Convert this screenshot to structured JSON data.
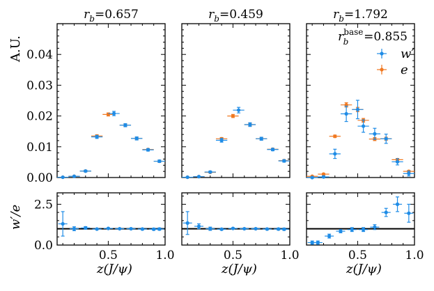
{
  "chart_data": {
    "type": "scatter",
    "ylabel_top": "A.U.",
    "ylabel_bottom": "w′/e",
    "xlabel": "z(J/ψ)",
    "base_label": "r_b^base = 0.855",
    "base_text": {
      "r": "r",
      "sub": "b",
      "sup": "base",
      "value": "=0.855"
    },
    "legend": [
      {
        "name": "w′",
        "color": "#1f8ce6"
      },
      {
        "name": "e",
        "color": "#f07820"
      }
    ],
    "top_ylim": [
      0,
      0.05
    ],
    "top_yticks": [
      0.0,
      0.01,
      0.02,
      0.03,
      0.04
    ],
    "top_ytick_labels": [
      "0.00",
      "0.01",
      "0.02",
      "0.03",
      "0.04"
    ],
    "bottom_ylim": [
      0,
      3.2
    ],
    "bottom_yticks": [
      0.0,
      2.5
    ],
    "bottom_ytick_labels": [
      "0.0",
      "2.5"
    ],
    "xlim": [
      0.05,
      1.0
    ],
    "xticks": [
      0.5,
      1.0
    ],
    "xtick_labels": [
      "0.5",
      "1.0"
    ],
    "ratio_reference": 1.0,
    "panels": [
      {
        "title": {
          "r": "r",
          "sub": "b",
          "value": "=0.657"
        },
        "w_prime": {
          "x": [
            0.1,
            0.2,
            0.3,
            0.4,
            0.55,
            0.65,
            0.75,
            0.85,
            0.95
          ],
          "y": [
            0.0001,
            0.0004,
            0.0021,
            0.0132,
            0.0208,
            0.017,
            0.0127,
            0.009,
            0.0053
          ],
          "yerr": [
            0.0001,
            0.0001,
            0.0003,
            0.0005,
            0.0007,
            0.0005,
            0.0005,
            0.0004,
            0.0004
          ]
        },
        "e": {
          "x": [
            0.1,
            0.2,
            0.3,
            0.4,
            0.5,
            0.65,
            0.75,
            0.85,
            0.95
          ],
          "y": [
            0.0001,
            0.0004,
            0.0021,
            0.0135,
            0.0205,
            0.017,
            0.0127,
            0.0091,
            0.0053
          ],
          "yerr": [
            0.0001,
            0.0001,
            0.0002,
            0.0004,
            0.0005,
            0.0004,
            0.0004,
            0.0003,
            0.0003
          ]
        },
        "ratio": {
          "x": [
            0.1,
            0.2,
            0.3,
            0.4,
            0.5,
            0.6,
            0.7,
            0.8,
            0.9,
            0.95
          ],
          "y": [
            1.3,
            1.0,
            1.05,
            0.98,
            1.02,
            1.0,
            1.0,
            0.98,
            0.97,
            0.98
          ],
          "yerr": [
            0.75,
            0.12,
            0.08,
            0.04,
            0.03,
            0.03,
            0.04,
            0.05,
            0.06,
            0.07
          ]
        }
      },
      {
        "title": {
          "r": "r",
          "sub": "b",
          "value": "=0.459"
        },
        "w_prime": {
          "x": [
            0.1,
            0.2,
            0.3,
            0.4,
            0.55,
            0.65,
            0.75,
            0.85,
            0.95
          ],
          "y": [
            0.0001,
            0.0003,
            0.0018,
            0.0121,
            0.0219,
            0.0172,
            0.0126,
            0.0091,
            0.0054
          ],
          "yerr": [
            0.0001,
            0.0001,
            0.0003,
            0.0006,
            0.0009,
            0.0006,
            0.0005,
            0.0004,
            0.0004
          ]
        },
        "e": {
          "x": [
            0.1,
            0.2,
            0.3,
            0.4,
            0.5,
            0.65,
            0.75,
            0.85,
            0.95
          ],
          "y": [
            0.0001,
            0.0003,
            0.0017,
            0.0126,
            0.02,
            0.0172,
            0.0126,
            0.0092,
            0.0055
          ],
          "yerr": [
            0.0001,
            0.0001,
            0.0002,
            0.0004,
            0.0005,
            0.0004,
            0.0004,
            0.0003,
            0.0003
          ]
        },
        "ratio": {
          "x": [
            0.1,
            0.2,
            0.3,
            0.4,
            0.5,
            0.6,
            0.7,
            0.8,
            0.9,
            0.95
          ],
          "y": [
            1.35,
            1.15,
            1.0,
            0.97,
            1.02,
            1.0,
            1.0,
            0.98,
            0.98,
            0.97
          ],
          "yerr": [
            0.7,
            0.15,
            0.1,
            0.05,
            0.04,
            0.04,
            0.04,
            0.05,
            0.06,
            0.07
          ]
        }
      },
      {
        "title": {
          "r": "r",
          "sub": "b",
          "value": "=1.792"
        },
        "w_prime": {
          "x": [
            0.1,
            0.2,
            0.3,
            0.4,
            0.5,
            0.55,
            0.65,
            0.75,
            0.85,
            0.95
          ],
          "y": [
            0.0,
            0.0002,
            0.0077,
            0.0207,
            0.0221,
            0.0167,
            0.0142,
            0.0126,
            0.0051,
            0.0013
          ],
          "yerr": [
            0.0002,
            0.0003,
            0.0015,
            0.0025,
            0.003,
            0.002,
            0.0018,
            0.0015,
            0.001,
            0.0008
          ]
        },
        "e": {
          "x": [
            0.1,
            0.2,
            0.3,
            0.4,
            0.5,
            0.55,
            0.65,
            0.75,
            0.85,
            0.95
          ],
          "y": [
            0.0004,
            0.0011,
            0.0134,
            0.0236,
            0.0221,
            0.0186,
            0.0125,
            0.0126,
            0.0058,
            0.002
          ],
          "yerr": [
            0.0001,
            0.0002,
            0.0004,
            0.0007,
            0.0007,
            0.0006,
            0.0005,
            0.0005,
            0.0004,
            0.0003
          ]
        },
        "ratio": {
          "x": [
            0.1,
            0.15,
            0.25,
            0.35,
            0.45,
            0.55,
            0.65,
            0.75,
            0.85,
            0.95
          ],
          "y": [
            0.15,
            0.15,
            0.55,
            0.85,
            0.95,
            0.95,
            1.1,
            2.0,
            2.5,
            1.95
          ],
          "yerr": [
            0.1,
            0.1,
            0.12,
            0.1,
            0.12,
            0.12,
            0.15,
            0.25,
            0.45,
            0.55
          ]
        }
      }
    ]
  }
}
